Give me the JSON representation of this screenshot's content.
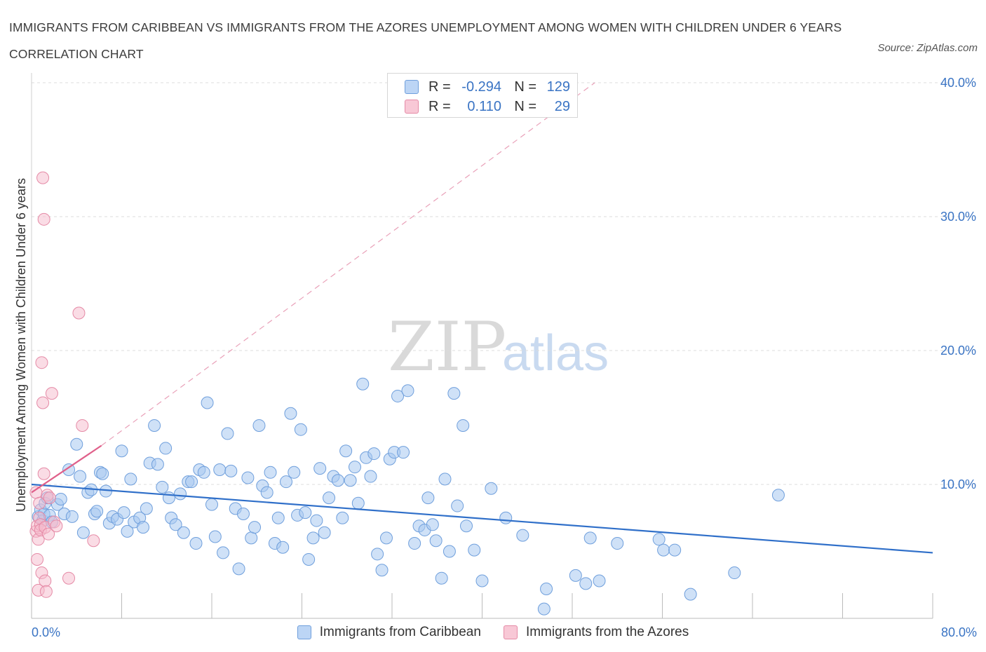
{
  "title": "IMMIGRANTS FROM CARIBBEAN VS IMMIGRANTS FROM THE AZORES UNEMPLOYMENT AMONG WOMEN WITH CHILDREN UNDER 6 YEARS CORRELATION CHART",
  "source": "Source: ZipAtlas.com",
  "watermark": {
    "zip": "ZIP",
    "atlas": "atlas"
  },
  "colors": {
    "caribbean_fill": "#a8c8f0",
    "caribbean_stroke": "#6f9fdc",
    "caribbean_line": "#2f6fc9",
    "azores_fill": "#f5b9cb",
    "azores_stroke": "#e58aa6",
    "azores_line": "#e0608a",
    "tick_text": "#3a74c4",
    "grid": "#dcdcdc"
  },
  "legend_box": {
    "rows": [
      {
        "r_label": "R =",
        "r_value": "-0.294",
        "n_label": "N =",
        "n_value": "129"
      },
      {
        "r_label": "R =",
        "r_value": "0.110",
        "n_label": "N =",
        "n_value": "29"
      }
    ]
  },
  "chart_data": {
    "type": "scatter",
    "xlabel": "",
    "ylabel": "Unemployment Among Women with Children Under 6 years",
    "xlim": [
      0,
      80
    ],
    "ylim": [
      0,
      40
    ],
    "x_tick_labels": [
      "0.0%",
      "80.0%"
    ],
    "y_ticks": [
      10,
      20,
      30,
      40
    ],
    "y_tick_labels": [
      "10.0%",
      "20.0%",
      "30.0%",
      "40.0%"
    ],
    "grid": "horizontal dashed",
    "legend_position": "bottom-center",
    "series": [
      {
        "name": "Immigrants from Caribbean",
        "R": -0.294,
        "N": 129,
        "trend": {
          "x": [
            0,
            80
          ],
          "y": [
            10.0,
            4.9
          ]
        },
        "points": [
          [
            0.6,
            7.6
          ],
          [
            0.8,
            8.1
          ],
          [
            1.0,
            7.3
          ],
          [
            1.1,
            7.8
          ],
          [
            1.2,
            8.6
          ],
          [
            1.4,
            9.0
          ],
          [
            1.6,
            7.7
          ],
          [
            1.8,
            7.2
          ],
          [
            2.3,
            8.5
          ],
          [
            2.6,
            8.9
          ],
          [
            2.9,
            7.8
          ],
          [
            3.3,
            11.1
          ],
          [
            3.6,
            7.6
          ],
          [
            4.0,
            13.0
          ],
          [
            4.3,
            10.6
          ],
          [
            4.6,
            6.4
          ],
          [
            5.0,
            9.4
          ],
          [
            5.3,
            9.6
          ],
          [
            5.6,
            7.8
          ],
          [
            5.8,
            8.0
          ],
          [
            6.1,
            10.9
          ],
          [
            6.3,
            10.8
          ],
          [
            6.6,
            9.5
          ],
          [
            6.9,
            7.1
          ],
          [
            7.2,
            7.6
          ],
          [
            7.6,
            7.4
          ],
          [
            8.0,
            12.5
          ],
          [
            8.2,
            7.9
          ],
          [
            8.5,
            6.5
          ],
          [
            8.8,
            10.4
          ],
          [
            9.1,
            7.2
          ],
          [
            9.6,
            7.5
          ],
          [
            9.9,
            6.8
          ],
          [
            10.2,
            8.2
          ],
          [
            10.5,
            11.6
          ],
          [
            10.9,
            14.4
          ],
          [
            11.2,
            11.5
          ],
          [
            11.6,
            9.8
          ],
          [
            11.9,
            12.7
          ],
          [
            12.2,
            9.0
          ],
          [
            12.4,
            7.5
          ],
          [
            12.8,
            7.0
          ],
          [
            13.2,
            9.3
          ],
          [
            13.5,
            6.4
          ],
          [
            13.9,
            10.2
          ],
          [
            14.2,
            10.2
          ],
          [
            14.6,
            5.6
          ],
          [
            14.9,
            11.1
          ],
          [
            15.3,
            10.9
          ],
          [
            15.6,
            16.1
          ],
          [
            16.0,
            8.5
          ],
          [
            16.3,
            6.1
          ],
          [
            16.7,
            11.1
          ],
          [
            17.0,
            4.9
          ],
          [
            17.4,
            13.8
          ],
          [
            17.7,
            11.0
          ],
          [
            18.1,
            8.2
          ],
          [
            18.4,
            3.7
          ],
          [
            18.8,
            7.8
          ],
          [
            19.2,
            10.5
          ],
          [
            19.5,
            6.0
          ],
          [
            19.8,
            6.8
          ],
          [
            20.2,
            14.4
          ],
          [
            20.5,
            9.9
          ],
          [
            20.9,
            9.4
          ],
          [
            21.2,
            10.9
          ],
          [
            21.6,
            5.6
          ],
          [
            21.9,
            7.5
          ],
          [
            22.3,
            5.3
          ],
          [
            22.6,
            10.2
          ],
          [
            23.0,
            15.3
          ],
          [
            23.3,
            10.9
          ],
          [
            23.6,
            7.7
          ],
          [
            23.9,
            14.1
          ],
          [
            24.3,
            7.9
          ],
          [
            24.6,
            4.4
          ],
          [
            25.0,
            6.0
          ],
          [
            25.3,
            7.3
          ],
          [
            25.6,
            11.2
          ],
          [
            26.0,
            6.4
          ],
          [
            26.4,
            9.0
          ],
          [
            26.8,
            10.6
          ],
          [
            27.2,
            10.3
          ],
          [
            27.6,
            7.5
          ],
          [
            27.9,
            12.5
          ],
          [
            28.3,
            10.3
          ],
          [
            28.7,
            11.3
          ],
          [
            29.0,
            8.6
          ],
          [
            29.4,
            17.5
          ],
          [
            29.7,
            12.0
          ],
          [
            30.1,
            10.6
          ],
          [
            30.4,
            12.3
          ],
          [
            30.7,
            4.8
          ],
          [
            31.1,
            3.6
          ],
          [
            31.5,
            6.0
          ],
          [
            31.8,
            11.9
          ],
          [
            32.2,
            12.4
          ],
          [
            32.5,
            16.6
          ],
          [
            33.0,
            12.4
          ],
          [
            33.4,
            17.0
          ],
          [
            34.0,
            5.6
          ],
          [
            34.4,
            6.9
          ],
          [
            34.9,
            6.6
          ],
          [
            35.2,
            9.0
          ],
          [
            35.6,
            7.0
          ],
          [
            35.9,
            5.8
          ],
          [
            36.4,
            3.0
          ],
          [
            36.7,
            10.4
          ],
          [
            37.1,
            5.0
          ],
          [
            37.5,
            16.8
          ],
          [
            37.8,
            8.4
          ],
          [
            38.3,
            14.4
          ],
          [
            38.6,
            6.9
          ],
          [
            39.3,
            5.1
          ],
          [
            40.0,
            2.8
          ],
          [
            40.8,
            9.7
          ],
          [
            42.1,
            7.5
          ],
          [
            43.6,
            6.2
          ],
          [
            45.7,
            2.2
          ],
          [
            48.3,
            3.2
          ],
          [
            49.2,
            2.6
          ],
          [
            49.6,
            6.0
          ],
          [
            50.4,
            2.8
          ],
          [
            52.0,
            5.6
          ],
          [
            55.7,
            5.9
          ],
          [
            56.1,
            5.1
          ],
          [
            57.1,
            5.1
          ],
          [
            58.5,
            1.8
          ],
          [
            62.4,
            3.4
          ],
          [
            66.3,
            9.2
          ],
          [
            45.5,
            0.7
          ]
        ]
      },
      {
        "name": "Immigrants from the Azores",
        "R": 0.11,
        "N": 29,
        "trend": {
          "x": [
            0,
            6.2
          ],
          "y": [
            9.4,
            12.9
          ]
        },
        "trend_dashed": {
          "x": [
            6.2,
            50
          ],
          "y": [
            12.9,
            40
          ]
        },
        "points": [
          [
            0.4,
            9.4
          ],
          [
            0.4,
            6.5
          ],
          [
            0.5,
            6.9
          ],
          [
            0.5,
            4.4
          ],
          [
            0.6,
            5.9
          ],
          [
            0.6,
            2.1
          ],
          [
            0.7,
            7.5
          ],
          [
            0.7,
            8.6
          ],
          [
            0.8,
            7.0
          ],
          [
            0.8,
            6.6
          ],
          [
            0.9,
            19.1
          ],
          [
            0.9,
            3.4
          ],
          [
            1.0,
            32.9
          ],
          [
            1.0,
            16.1
          ],
          [
            1.1,
            10.8
          ],
          [
            1.1,
            29.8
          ],
          [
            1.2,
            2.8
          ],
          [
            1.2,
            6.8
          ],
          [
            1.3,
            2.0
          ],
          [
            1.4,
            9.2
          ],
          [
            1.5,
            6.3
          ],
          [
            1.6,
            9.0
          ],
          [
            1.8,
            16.8
          ],
          [
            2.0,
            7.2
          ],
          [
            2.2,
            6.9
          ],
          [
            3.3,
            3.0
          ],
          [
            4.2,
            22.8
          ],
          [
            4.5,
            14.4
          ],
          [
            5.5,
            5.8
          ]
        ]
      }
    ]
  },
  "bottom_legend": [
    {
      "label": "Immigrants from Caribbean"
    },
    {
      "label": "Immigrants from the Azores"
    }
  ]
}
